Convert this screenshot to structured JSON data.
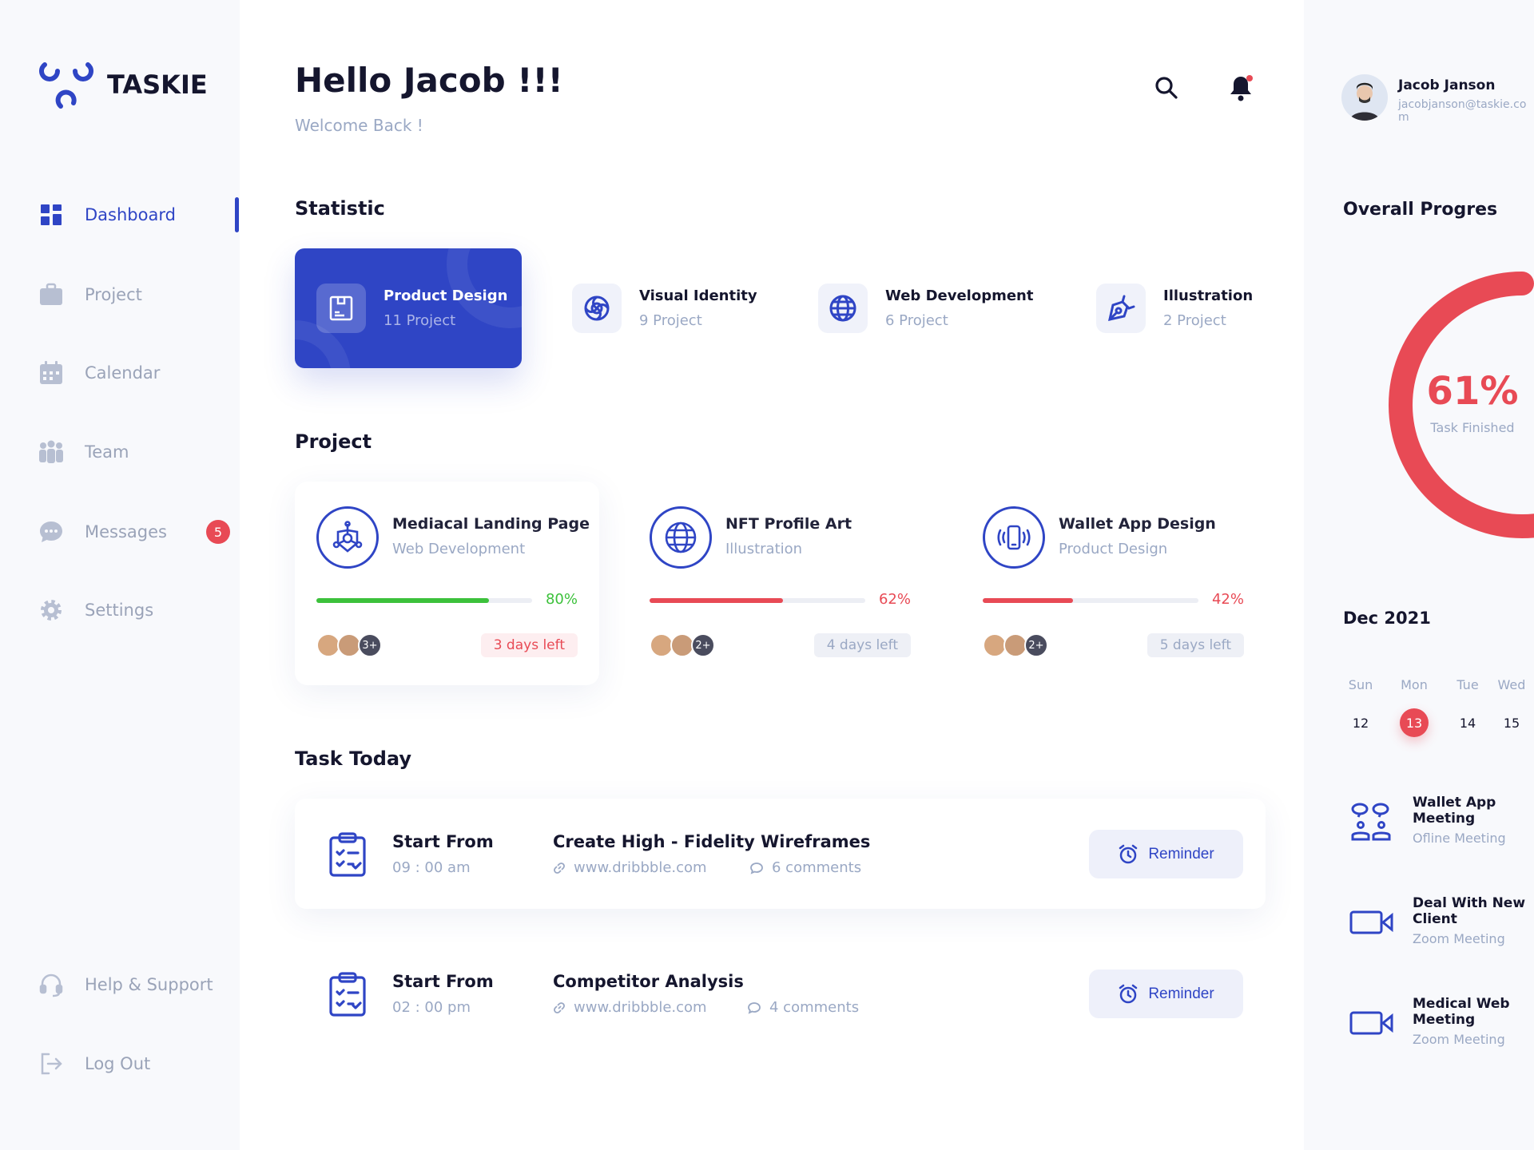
{
  "brand": {
    "name": "TASKIE",
    "accent": "#2f45c5",
    "danger": "#e84a55",
    "success": "#3cc13b"
  },
  "sidebar": {
    "items": [
      {
        "label": "Dashboard",
        "icon": "dashboard-icon",
        "active": true
      },
      {
        "label": "Project",
        "icon": "briefcase-icon"
      },
      {
        "label": "Calendar",
        "icon": "calendar-icon"
      },
      {
        "label": "Team",
        "icon": "team-icon"
      },
      {
        "label": "Messages",
        "icon": "chat-icon",
        "badge": "5"
      },
      {
        "label": "Settings",
        "icon": "gear-icon"
      }
    ],
    "bottom": [
      {
        "label": "Help & Support",
        "icon": "headset-icon"
      },
      {
        "label": "Log Out",
        "icon": "logout-icon"
      }
    ]
  },
  "header": {
    "greeting": "Hello Jacob !!!",
    "subtitle": "Welcome Back !"
  },
  "user": {
    "name": "Jacob Janson",
    "email": "jacobjanson@taskie.com"
  },
  "statistic": {
    "title": "Statistic",
    "items": [
      {
        "title": "Product Design",
        "count": "11 Project",
        "icon": "product-box-icon",
        "active": true
      },
      {
        "title": "Visual Identity",
        "count": "9 Project",
        "icon": "swirl-icon"
      },
      {
        "title": "Web Development",
        "count": "6 Project",
        "icon": "globe-icon"
      },
      {
        "title": "Illustration",
        "count": "2 Project",
        "icon": "pen-tool-icon"
      }
    ]
  },
  "projects": {
    "title": "Project",
    "items": [
      {
        "title": "Mediacal Landing Page",
        "category": "Web Development",
        "progress": 80,
        "progress_label": "80%",
        "color": "#3cc13b",
        "more": "3+",
        "days": "3 days left",
        "urgent": true
      },
      {
        "title": "NFT Profile Art",
        "category": "Illustration",
        "progress": 62,
        "progress_label": "62%",
        "color": "#e84a55",
        "more": "2+",
        "days": "4 days left"
      },
      {
        "title": "Wallet App Design",
        "category": "Product Design",
        "progress": 42,
        "progress_label": "42%",
        "color": "#e84a55",
        "more": "2+",
        "days": "5 days left"
      }
    ]
  },
  "tasks": {
    "title": "Task Today",
    "items": [
      {
        "start_label": "Start From",
        "time": "09 : 00 am",
        "title": "Create High - Fidelity Wireframes",
        "link": "www.dribbble.com",
        "comments": "6 comments",
        "button": "Reminder"
      },
      {
        "start_label": "Start From",
        "time": "02 : 00 pm",
        "title": "Competitor Analysis",
        "link": "www.dribbble.com",
        "comments": "4 comments",
        "button": "Reminder"
      }
    ]
  },
  "overall": {
    "title": "Overall Progres",
    "percent": 61,
    "percent_label": "61%",
    "caption": "Task Finished"
  },
  "calendar": {
    "month": "Dec 2021",
    "days": [
      "Sun",
      "Mon",
      "Tue",
      "Wed"
    ],
    "dates": [
      "12",
      "13",
      "14",
      "15"
    ],
    "selected": "13"
  },
  "meetings": [
    {
      "title": "Wallet App Meeting",
      "type": "Ofline Meeting",
      "icon": "meeting-people-icon"
    },
    {
      "title": "Deal With New Client",
      "type": "Zoom Meeting",
      "icon": "video-camera-icon"
    },
    {
      "title": "Medical Web Meeting",
      "type": "Zoom Meeting",
      "icon": "video-camera-icon"
    }
  ]
}
